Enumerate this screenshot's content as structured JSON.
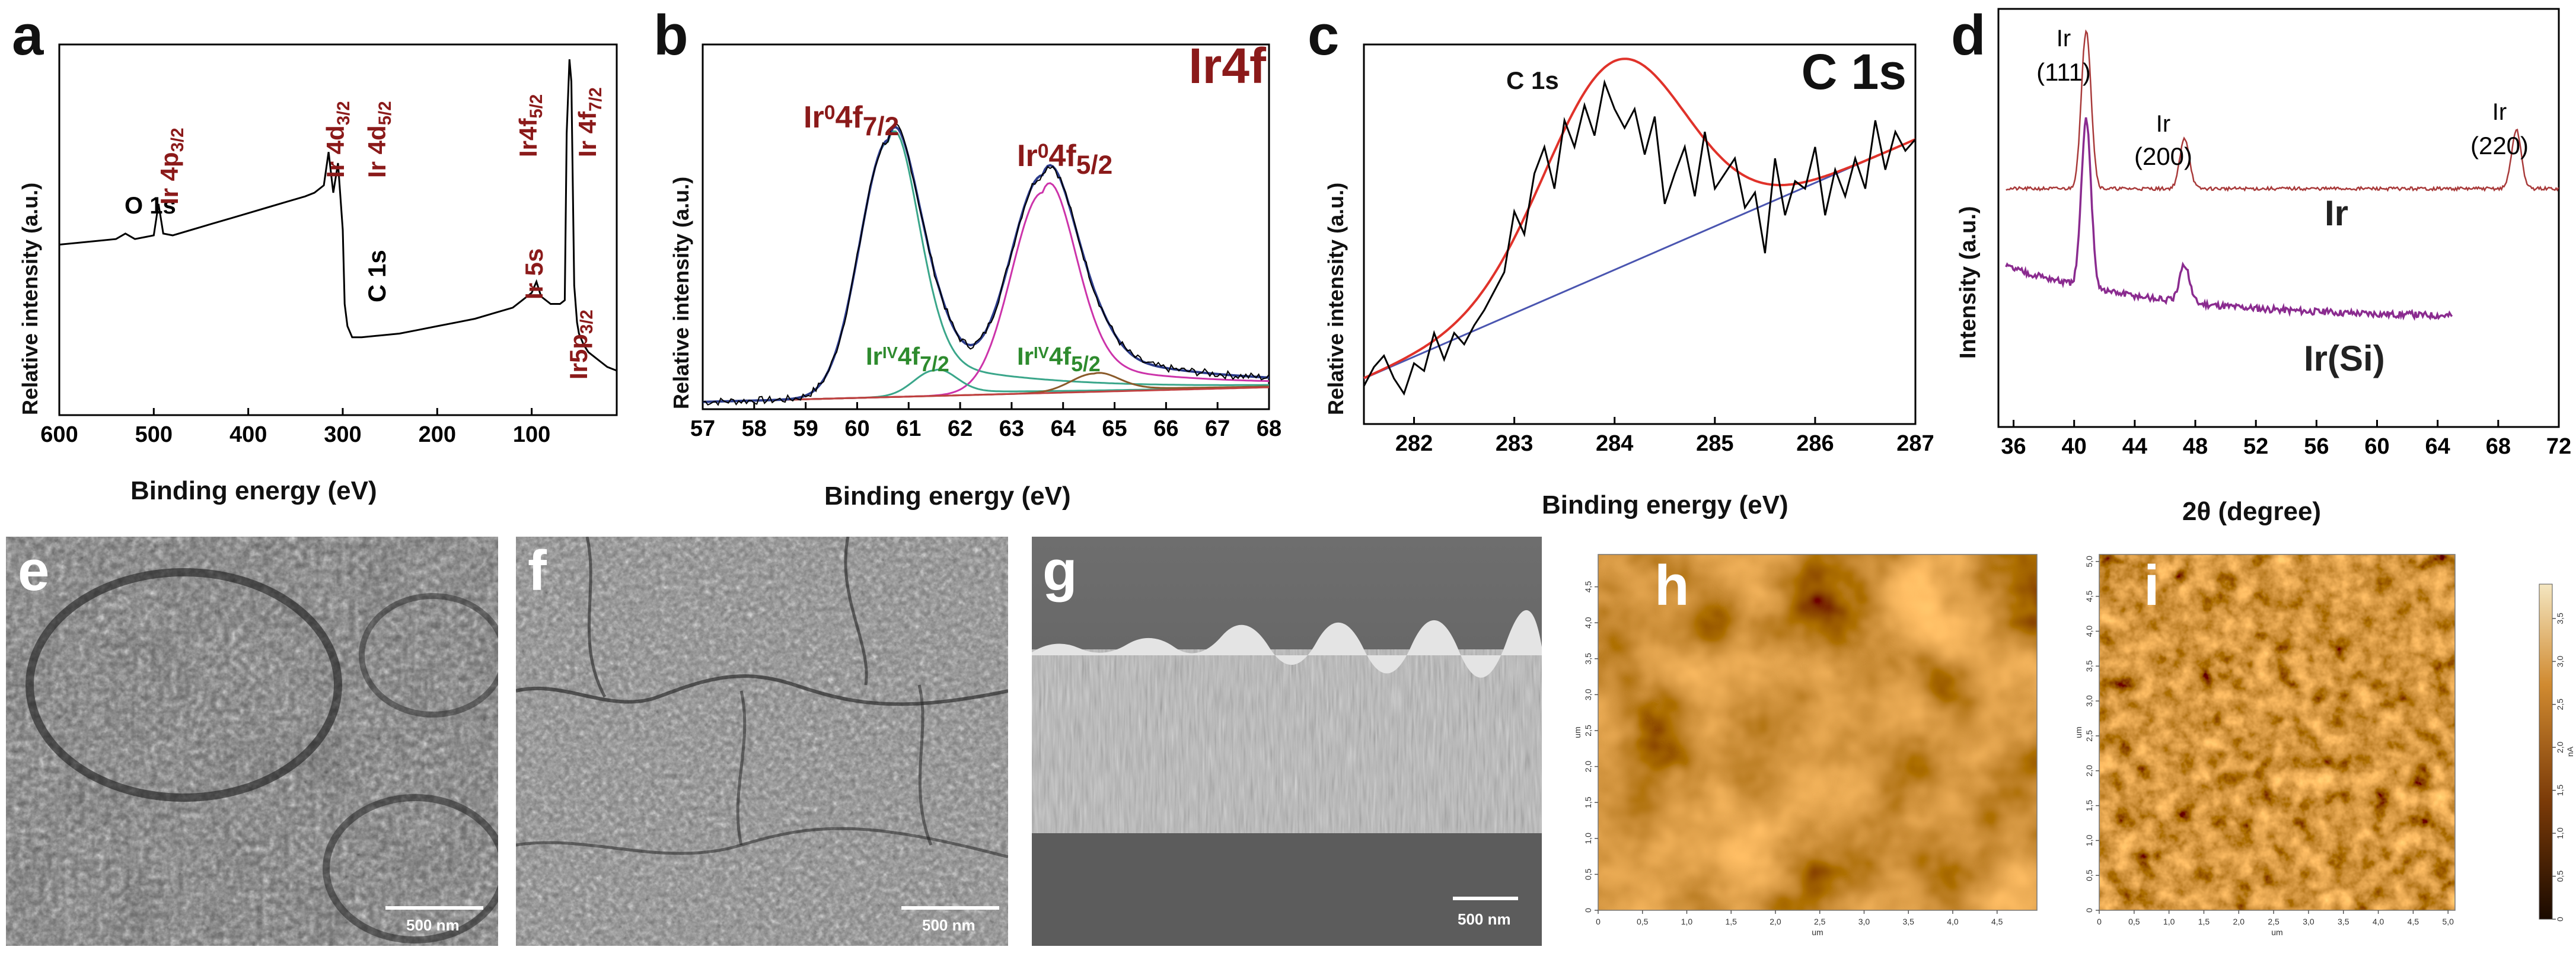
{
  "panels": {
    "a": {
      "letter": "a",
      "xlabel": "Binding energy (eV)",
      "ylabel": "Relative intensity (a.u.)",
      "ticks": [
        "600",
        "500",
        "400",
        "300",
        "200",
        "100"
      ],
      "labels": {
        "o1s": "O 1s",
        "ir4p": "Ir 4p",
        "ir4p_sub": "3/2",
        "ir4d32": "Ir 4d",
        "ir4d32_sub": "3/2",
        "ir4d52": "Ir 4d",
        "ir4d52_sub": "5/2",
        "c1s": "C 1s",
        "ir5s": "Ir 5s",
        "ir4f52": "Ir4f",
        "ir4f52_sub": "5/2",
        "ir4f72": "Ir 4f",
        "ir4f72_sub": "7/2",
        "ir5p": "Ir5p",
        "ir5p_sub": "3/2"
      }
    },
    "b": {
      "letter": "b",
      "title": "Ir4f",
      "xlabel": "Binding energy (eV)",
      "ylabel": "Relative intensity (a.u.)",
      "ticks": [
        "57",
        "58",
        "59",
        "60",
        "61",
        "62",
        "63",
        "64",
        "65",
        "66",
        "67",
        "68"
      ],
      "labels": {
        "ir0_72_a": "Ir",
        "ir0_72_sup": "0",
        "ir0_72_b": "4f",
        "ir0_72_sub": "7/2",
        "ir0_52_a": "Ir",
        "ir0_52_sup": "0",
        "ir0_52_b": "4f",
        "ir0_52_sub": "5/2",
        "iriv_72_a": "Ir",
        "iriv_72_sup": "IV",
        "iriv_72_b": "4f",
        "iriv_72_sub": "7/2",
        "iriv_52_a": "Ir",
        "iriv_52_sup": "IV",
        "iriv_52_b": "4f",
        "iriv_52_sub": "5/2"
      }
    },
    "c": {
      "letter": "c",
      "title": "C 1s",
      "peak_label": "C 1s",
      "xlabel": "Binding energy (eV)",
      "ylabel": "Relative intensity (a.u.)",
      "ticks": [
        "282",
        "283",
        "284",
        "285",
        "286",
        "287"
      ]
    },
    "d": {
      "letter": "d",
      "xlabel": "2θ (degree)",
      "ylabel": "Intensity (a.u.)",
      "ticks": [
        "36",
        "40",
        "44",
        "48",
        "52",
        "56",
        "60",
        "64",
        "68",
        "72"
      ],
      "labels": {
        "p111_a": "Ir",
        "p111_b": "(111)",
        "p200_a": "Ir",
        "p200_b": "(200)",
        "p220_a": "Ir",
        "p220_b": "(220)",
        "ir": "Ir",
        "irsi": "Ir(Si)"
      }
    },
    "e": {
      "letter": "e",
      "scale": "500 nm"
    },
    "f": {
      "letter": "f",
      "scale": "500 nm"
    },
    "g": {
      "letter": "g",
      "scale": "500 nm"
    },
    "h": {
      "letter": "h",
      "axis_unit": "um",
      "xticks": [
        "0",
        "0,5",
        "1,0",
        "1,5",
        "2,0",
        "2,5",
        "3,0",
        "3,5",
        "4,0",
        "4,5"
      ],
      "yticks": [
        "0",
        "0,5",
        "1,0",
        "1,5",
        "2,0",
        "2,5",
        "3,0",
        "3,5",
        "4,0",
        "4,5"
      ]
    },
    "i": {
      "letter": "i",
      "axis_unit": "um",
      "xticks": [
        "0",
        "0,5",
        "1,0",
        "1,5",
        "2,0",
        "2,5",
        "3,0",
        "3,5",
        "4,0",
        "4,5",
        "5,0"
      ],
      "yticks": [
        "0",
        "0,5",
        "1,0",
        "1,5",
        "2,0",
        "2,5",
        "3,0",
        "3,5",
        "4,0",
        "4,5",
        "5,0"
      ],
      "colorbar_ticks": [
        "0",
        "0,5",
        "1,0",
        "1,5",
        "2,0",
        "2,5",
        "3,0",
        "3,5"
      ],
      "colorbar_unit": "nA"
    }
  },
  "colors": {
    "darkred": "#8b1a1a",
    "green": "#2e8b2e",
    "black": "#111111",
    "envelope": "#2b3b8a",
    "fit_teal": "#3aa68a",
    "fit_magenta": "#cc33aa",
    "fit_red": "#e0322a",
    "baseline_blue": "#4a55b0",
    "xrd_ir": "#a83a3a",
    "xrd_irsi": "#8a2b8f"
  },
  "chart_data": [
    {
      "type": "line",
      "id": "a",
      "title": "",
      "xlabel": "Binding energy (eV)",
      "ylabel": "Relative intensity (a.u.)",
      "xlim": [
        600,
        10
      ],
      "ylim": [
        0,
        100
      ],
      "x": [
        600,
        580,
        560,
        540,
        530,
        520,
        510,
        500,
        495,
        490,
        480,
        460,
        440,
        420,
        400,
        380,
        360,
        340,
        330,
        320,
        315,
        310,
        305,
        300,
        298,
        295,
        290,
        280,
        260,
        240,
        220,
        200,
        180,
        160,
        140,
        120,
        110,
        100,
        95,
        90,
        80,
        70,
        65,
        63,
        60,
        58,
        55,
        52,
        50,
        45,
        40,
        30,
        20,
        10
      ],
      "series": [
        {
          "name": "survey",
          "values": [
            46,
            46.5,
            47,
            47.5,
            49,
            47.5,
            48,
            48.5,
            57,
            49,
            48.5,
            50,
            51.5,
            53,
            54.5,
            56,
            57.5,
            59,
            60,
            62,
            71,
            60,
            68,
            50,
            30,
            24,
            21,
            21,
            21.5,
            22,
            23,
            24,
            25,
            26,
            27.5,
            29,
            31,
            33,
            36,
            32,
            30,
            30,
            31,
            76,
            96,
            90,
            35,
            25,
            22,
            19,
            17,
            15,
            13,
            12
          ]
        }
      ],
      "peak_labels": [
        "O 1s",
        "Ir 4p3/2",
        "Ir 4d3/2",
        "Ir 4d5/2",
        "C 1s",
        "Ir 5s",
        "Ir4f5/2",
        "Ir 4f7/2",
        "Ir5p3/2"
      ]
    },
    {
      "type": "line",
      "id": "b",
      "title": "Ir4f",
      "xlabel": "Binding energy (eV)",
      "ylabel": "Relative intensity (a.u.)",
      "xlim": [
        57,
        68
      ],
      "ylim": [
        0,
        100
      ],
      "components": [
        {
          "name": "Ir0 4f7/2",
          "center": 60.6,
          "height": 70,
          "width": 0.55
        },
        {
          "name": "Ir0 4f5/2",
          "center": 63.6,
          "height": 55,
          "width": 0.6
        },
        {
          "name": "IrIV 4f7/2",
          "center": 61.5,
          "height": 7,
          "width": 0.4
        },
        {
          "name": "IrIV 4f5/2",
          "center": 64.6,
          "height": 5,
          "width": 0.45
        }
      ],
      "background": [
        2,
        6
      ]
    },
    {
      "type": "line",
      "id": "c",
      "title": "C 1s",
      "xlabel": "Binding energy (eV)",
      "ylabel": "Relative intensity (a.u.)",
      "xlim": [
        281.5,
        287
      ],
      "ylim": [
        0,
        100
      ],
      "x": [
        281.5,
        281.6,
        281.7,
        281.8,
        281.9,
        282.0,
        282.1,
        282.2,
        282.3,
        282.4,
        282.5,
        282.6,
        282.7,
        282.8,
        282.9,
        283.0,
        283.1,
        283.2,
        283.3,
        283.4,
        283.5,
        283.6,
        283.7,
        283.8,
        283.9,
        284.0,
        284.1,
        284.2,
        284.3,
        284.4,
        284.5,
        284.6,
        284.7,
        284.8,
        284.9,
        285.0,
        285.1,
        285.2,
        285.3,
        285.4,
        285.5,
        285.6,
        285.7,
        285.8,
        285.9,
        286.0,
        286.1,
        286.2,
        286.3,
        286.4,
        286.5,
        286.6,
        286.7,
        286.8,
        286.9,
        287.0
      ],
      "series": [
        {
          "name": "raw",
          "values": [
            10,
            15,
            18,
            12,
            8,
            16,
            14,
            24,
            17,
            24,
            21,
            26,
            30,
            35,
            40,
            56,
            50,
            66,
            73,
            62,
            80,
            73,
            84,
            76,
            90,
            83,
            78,
            83,
            71,
            81,
            58,
            66,
            73,
            60,
            77,
            62,
            66,
            70,
            57,
            61,
            45,
            70,
            55,
            64,
            62,
            73,
            55,
            67,
            60,
            70,
            62,
            80,
            67,
            77,
            72,
            75
          ]
        }
      ],
      "fit_peak": {
        "center": 284.0,
        "height": 55,
        "width": 0.7
      },
      "baseline": [
        [
          281.5,
          12
        ],
        [
          287,
          75
        ]
      ]
    },
    {
      "type": "line",
      "id": "d",
      "title": "",
      "xlabel": "2θ (degree)",
      "ylabel": "Intensity (a.u.)",
      "xlim": [
        35,
        72
      ],
      "ylim": [
        0,
        100
      ],
      "series": [
        {
          "name": "Ir",
          "offset": 57,
          "peaks": [
            [
              40.8,
              38
            ],
            [
              47.3,
              12
            ],
            [
              69.2,
              14
            ]
          ],
          "x_end": 72
        },
        {
          "name": "Ir(Si)",
          "offset": 26,
          "peaks": [
            [
              40.8,
              40
            ],
            [
              47.3,
              9
            ]
          ],
          "decay": 12,
          "x_end": 65
        }
      ],
      "peak_labels": [
        "Ir (111)",
        "Ir (200)",
        "Ir (220)"
      ]
    }
  ]
}
